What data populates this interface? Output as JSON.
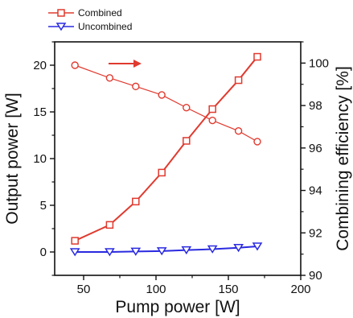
{
  "chart_data": {
    "type": "line",
    "xlabel": "Pump power [W]",
    "ylabel_left": "Output power [W]",
    "ylabel_right": "Combining efficiency [%]",
    "xlim": [
      30,
      200
    ],
    "ylim_left": [
      -2.5,
      22.5
    ],
    "ylim_right": [
      90,
      101
    ],
    "x_ticks": [
      "50",
      "100",
      "150",
      "200"
    ],
    "y_left_ticks": [
      "0",
      "5",
      "10",
      "15",
      "20"
    ],
    "y_right_ticks": [
      "90",
      "92",
      "94",
      "96",
      "98",
      "100"
    ],
    "grid": false,
    "legend_position": "top-left",
    "series": [
      {
        "name": "Combined",
        "axis": "left",
        "marker": "square",
        "color": "#e03a2f",
        "x": [
          44,
          68,
          86,
          104,
          121,
          139,
          157,
          170
        ],
        "values": [
          1.2,
          2.9,
          5.4,
          8.5,
          11.9,
          15.3,
          18.4,
          20.9
        ]
      },
      {
        "name": "Uncombined",
        "axis": "left",
        "marker": "triangle-down",
        "color": "#2a2ae0",
        "x": [
          44,
          68,
          86,
          104,
          121,
          139,
          157,
          170
        ],
        "values": [
          0.0,
          0.0,
          0.05,
          0.1,
          0.2,
          0.3,
          0.45,
          0.6
        ]
      },
      {
        "axis": "right",
        "marker": "circle",
        "color": "#e03a2f",
        "x": [
          44,
          68,
          86,
          104,
          121,
          139,
          157,
          170
        ],
        "values": [
          99.9,
          99.3,
          98.9,
          98.5,
          97.9,
          97.3,
          96.8,
          96.3
        ]
      }
    ],
    "annotations": [
      {
        "type": "arrow",
        "direction": "right",
        "color": "#e03a2f",
        "points_to_axis": "right"
      }
    ]
  }
}
